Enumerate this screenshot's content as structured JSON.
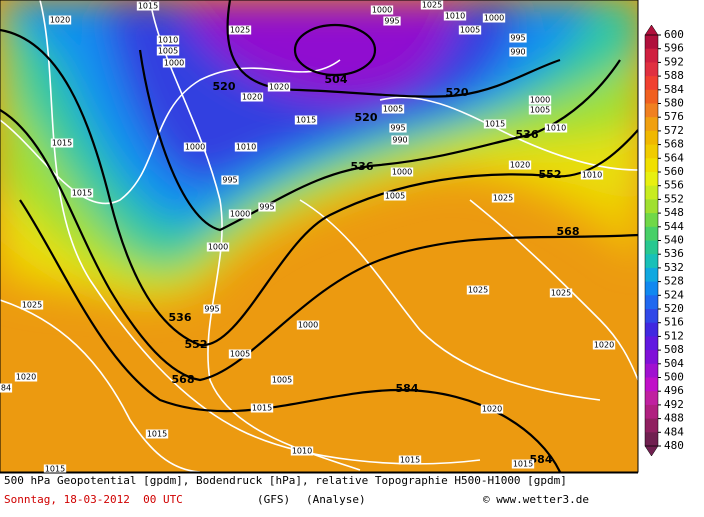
{
  "map": {
    "geopotential_labels": [
      520,
      504,
      520,
      520,
      536,
      536,
      552,
      568,
      536,
      552,
      568,
      584,
      584
    ],
    "pressure_labels": [
      1020,
      1015,
      1025,
      1010,
      1005,
      1000,
      1020,
      1020,
      1015,
      1000,
      1010,
      1015,
      1015,
      995,
      995,
      1000,
      1000,
      1005,
      995,
      990,
      1015,
      1010,
      1000,
      1005,
      995,
      990,
      1000,
      1005,
      1010,
      1000,
      995,
      1025,
      1020,
      1025,
      1010,
      1005,
      1000,
      1025,
      995,
      1000,
      1005,
      1005,
      1025,
      1025,
      1020,
      1020,
      1015,
      1020,
      1015,
      1010,
      1015,
      1015,
      1015,
      84
    ]
  },
  "colorbar": {
    "ticks": [
      600,
      596,
      592,
      588,
      584,
      580,
      576,
      572,
      568,
      564,
      560,
      556,
      552,
      548,
      544,
      540,
      536,
      532,
      528,
      524,
      520,
      516,
      512,
      508,
      504,
      500,
      496,
      492,
      488,
      484,
      480
    ],
    "colors": [
      "#b0103c",
      "#d02040",
      "#e03040",
      "#f04030",
      "#f06020",
      "#f08020",
      "#f0a010",
      "#f0b800",
      "#f0cc00",
      "#f0e000",
      "#e8f010",
      "#c8ec20",
      "#a0e030",
      "#70d848",
      "#48d068",
      "#28c890",
      "#18c0b8",
      "#10a8e0",
      "#1088f0",
      "#2068f0",
      "#3048e8",
      "#4028e0",
      "#6018e0",
      "#8010d8",
      "#a010d0",
      "#c010c8",
      "#c020a0",
      "#b02080",
      "#902060",
      "#702050"
    ]
  },
  "footer": {
    "line1": "500 hPa Geopotential [gpdm], Bodendruck [hPa], relative Topographie H500-H1000 [gpdm]",
    "date": "Sonntag, 18-03-2012  00 UTC",
    "model": "(GFS)",
    "kind": "(Analyse)",
    "credit": "© www.wetter3.de"
  }
}
